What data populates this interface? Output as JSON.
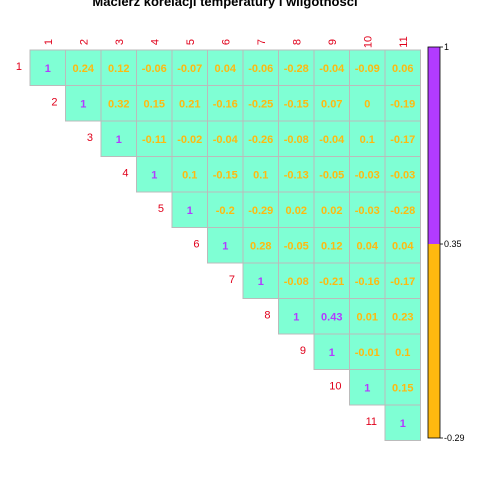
{
  "chart_data": {
    "type": "heatmap",
    "title": "Macierz korelacji temperatury i wilgotności",
    "labels": [
      "1",
      "2",
      "3",
      "4",
      "5",
      "6",
      "7",
      "8",
      "9",
      "10",
      "11"
    ],
    "matrix": [
      [
        1,
        0.24,
        0.12,
        -0.06,
        -0.07,
        0.04,
        -0.06,
        -0.28,
        -0.04,
        -0.09,
        0.06
      ],
      [
        null,
        1,
        0.32,
        0.15,
        0.21,
        -0.16,
        -0.25,
        -0.15,
        0.07,
        0,
        -0.19
      ],
      [
        null,
        null,
        1,
        -0.11,
        -0.02,
        -0.04,
        -0.26,
        -0.08,
        -0.04,
        0.1,
        -0.17
      ],
      [
        null,
        null,
        null,
        1,
        0.1,
        -0.15,
        0.1,
        -0.13,
        -0.05,
        -0.03,
        -0.03
      ],
      [
        null,
        null,
        null,
        null,
        1,
        -0.2,
        -0.29,
        0.02,
        0.02,
        -0.03,
        -0.28
      ],
      [
        null,
        null,
        null,
        null,
        null,
        1,
        0.28,
        -0.05,
        0.12,
        0.04,
        0.04
      ],
      [
        null,
        null,
        null,
        null,
        null,
        null,
        1,
        -0.08,
        -0.21,
        -0.16,
        -0.17
      ],
      [
        null,
        null,
        null,
        null,
        null,
        null,
        null,
        1,
        0.43,
        0.01,
        0.23
      ],
      [
        null,
        null,
        null,
        null,
        null,
        null,
        null,
        null,
        1,
        -0.01,
        0.1
      ],
      [
        null,
        null,
        null,
        null,
        null,
        null,
        null,
        null,
        null,
        1,
        0.15
      ],
      [
        null,
        null,
        null,
        null,
        null,
        null,
        null,
        null,
        null,
        null,
        1
      ]
    ],
    "cell_color": "#7fffd4",
    "cell_border": "#bbbbbb",
    "label_color": "#e0001b",
    "colorbar": {
      "range": [
        -0.29,
        1
      ],
      "threshold": 0.35,
      "ticks": [
        "1",
        "0.35",
        "-0.29"
      ],
      "low_color": "#ffb90f",
      "high_color": "#b23bff"
    }
  }
}
